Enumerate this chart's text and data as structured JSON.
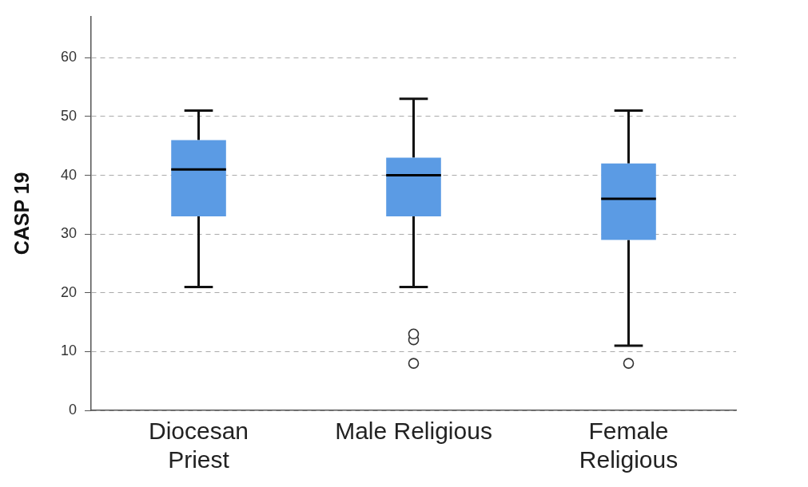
{
  "chart_data": {
    "type": "box",
    "ylabel": "CASP 19",
    "categories": [
      "Diocesan Priest",
      "Male Religious",
      "Female Religious"
    ],
    "color": "#5b9be4",
    "boxes": [
      {
        "low": 21,
        "q1": 33,
        "median": 41,
        "q3": 46,
        "high": 51
      },
      {
        "low": 21,
        "q1": 33,
        "median": 40,
        "q3": 43,
        "high": 53,
        "outliers": [
          8,
          12,
          13
        ]
      },
      {
        "low": 11,
        "q1": 29,
        "median": 36,
        "q3": 42,
        "high": 51,
        "outliers": [
          8
        ]
      }
    ],
    "ylim": [
      0,
      67
    ],
    "yticks": [
      0,
      10,
      20,
      30,
      40,
      50,
      60
    ],
    "grid": "y"
  }
}
